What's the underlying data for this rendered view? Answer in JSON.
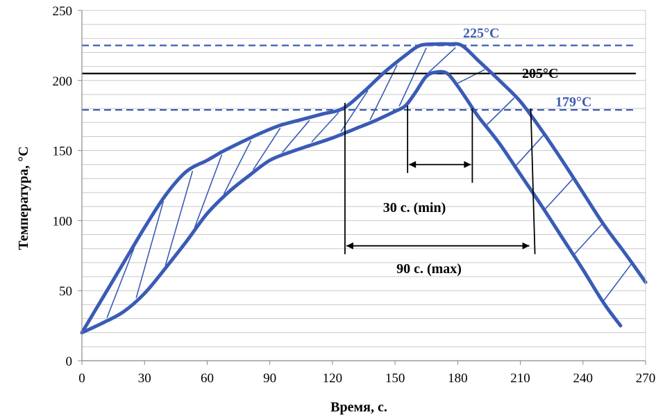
{
  "chart_data": {
    "type": "line",
    "xlabel": "Время, с.",
    "ylabel": "Температура,  °С",
    "xlim": [
      0,
      270
    ],
    "ylim": [
      0,
      250
    ],
    "x_ticks": [
      0,
      30,
      60,
      90,
      120,
      150,
      180,
      210,
      240,
      270
    ],
    "y_ticks": [
      0,
      50,
      100,
      150,
      200,
      250
    ],
    "grid": "horizontal",
    "legend": "none",
    "colors": {
      "band": "#3a5bb5",
      "hatch": "#3a5bb5",
      "reference": "#000000",
      "label_blue": "#3f5bb0"
    },
    "series": [
      {
        "role": "upper-limit",
        "x": [
          0,
          10,
          20,
          30,
          40,
          50,
          60,
          67,
          75,
          85,
          95,
          105,
          115,
          125,
          135,
          145,
          155,
          162,
          170,
          176,
          182,
          190,
          200,
          210,
          220,
          230,
          240,
          250,
          260,
          270
        ],
        "y": [
          20,
          45,
          70,
          95,
          118,
          135,
          143,
          149,
          155,
          162,
          168,
          172,
          176,
          180,
          192,
          206,
          218,
          225,
          226,
          226,
          225,
          214,
          200,
          185,
          165,
          143,
          120,
          97,
          77,
          56
        ]
      },
      {
        "role": "lower-limit",
        "x": [
          0,
          10,
          20,
          30,
          40,
          50,
          60,
          70,
          80,
          90,
          100,
          110,
          120,
          130,
          140,
          150,
          155,
          160,
          165,
          170,
          175,
          180,
          185,
          190,
          200,
          210,
          220,
          230,
          240,
          250,
          258
        ],
        "y": [
          20,
          27,
          35,
          48,
          66,
          85,
          105,
          120,
          132,
          143,
          149,
          154,
          159,
          165,
          171,
          178,
          182,
          192,
          203,
          206,
          205,
          196,
          185,
          174,
          155,
          133,
          111,
          88,
          65,
          41,
          25
        ]
      }
    ],
    "reference_lines": [
      {
        "y": 225,
        "label": "225°C",
        "style": "dashed"
      },
      {
        "y": 205,
        "label": "205°C",
        "style": "solid"
      },
      {
        "y": 179,
        "label": "179°C",
        "style": "dashed"
      }
    ],
    "intervals": [
      {
        "label": "30 с. (min)",
        "x_start": 156,
        "x_end": 187,
        "y": 140
      },
      {
        "label": "90 с. (max)",
        "x_start": 126,
        "x_end": 215,
        "y": 82
      }
    ]
  }
}
